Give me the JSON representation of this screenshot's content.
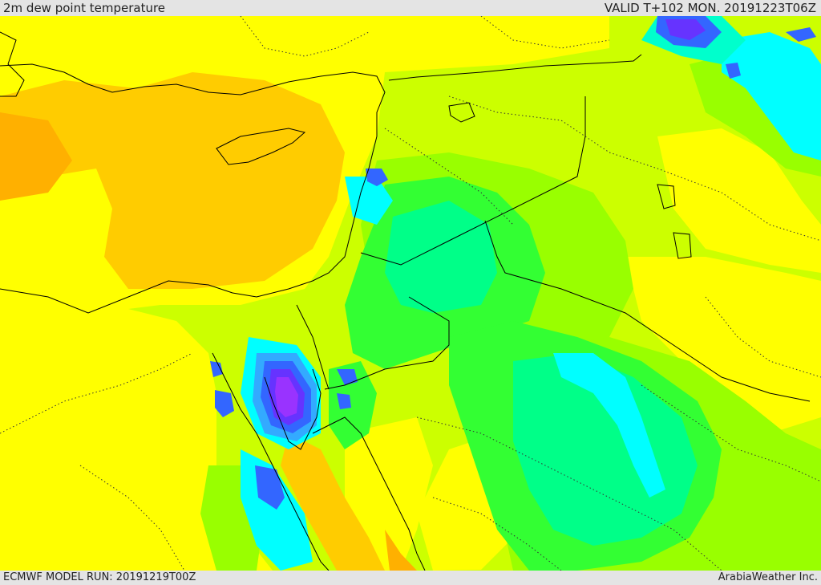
{
  "header": {
    "title": "2m dew point temperature",
    "valid": "VALID T+102 MON. 20191223T06Z"
  },
  "footer": {
    "model_run": "ECMWF MODEL RUN: 20191219T00Z",
    "credit": "ArabiaWeather Inc."
  },
  "palette": {
    "orange_dark": "#ffb000",
    "orange": "#ffcc00",
    "yellow": "#ffff00",
    "yellow_green": "#ccff00",
    "light_green": "#99ff00",
    "green": "#33ff33",
    "spring_green": "#00ff88",
    "mint": "#00ffcc",
    "cyan": "#00ffff",
    "light_blue": "#33aaff",
    "blue": "#3366ff",
    "indigo": "#6633ff",
    "violet": "#9933ff",
    "magenta": "#cc33ff"
  }
}
